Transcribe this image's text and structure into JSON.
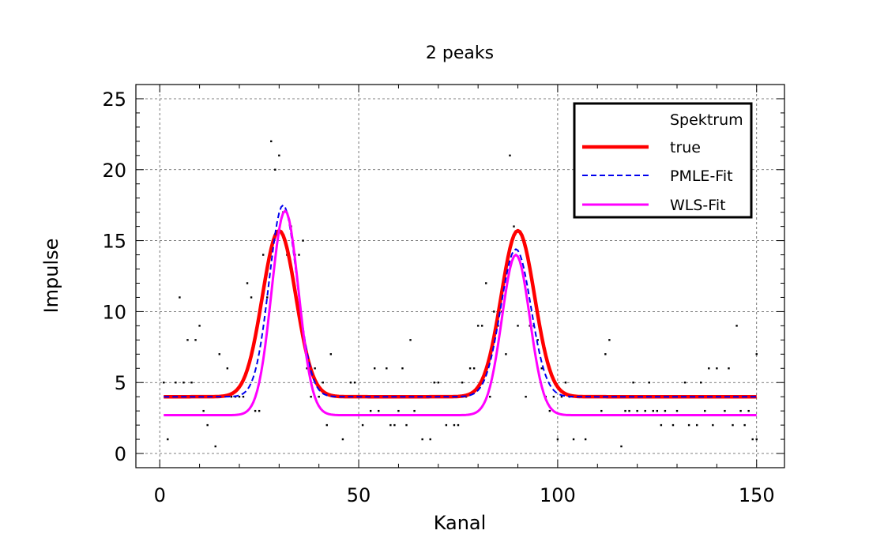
{
  "chart_data": {
    "type": "line",
    "title": "2 peaks",
    "xlabel": "Kanal",
    "ylabel": "Impulse",
    "xlim": [
      -6,
      157
    ],
    "ylim": [
      -1,
      26
    ],
    "xticks": [
      0,
      50,
      100,
      150
    ],
    "yticks": [
      0,
      5,
      10,
      15,
      20,
      25
    ],
    "grid": true,
    "legend_position": "top-right",
    "series": [
      {
        "name": "Spektrum",
        "style": "points",
        "color": "#000000",
        "x": [
          1,
          2,
          3,
          4,
          5,
          6,
          7,
          8,
          9,
          10,
          11,
          12,
          13,
          14,
          15,
          16,
          17,
          18,
          19,
          20,
          21,
          22,
          23,
          24,
          25,
          26,
          27,
          28,
          29,
          30,
          31,
          32,
          33,
          34,
          35,
          36,
          37,
          38,
          39,
          40,
          41,
          42,
          43,
          44,
          45,
          46,
          47,
          48,
          49,
          50,
          51,
          52,
          53,
          54,
          55,
          56,
          57,
          58,
          59,
          60,
          61,
          62,
          63,
          64,
          65,
          66,
          67,
          68,
          69,
          70,
          71,
          72,
          73,
          74,
          75,
          76,
          77,
          78,
          79,
          80,
          81,
          82,
          83,
          84,
          85,
          86,
          87,
          88,
          89,
          90,
          91,
          92,
          93,
          94,
          95,
          96,
          97,
          98,
          99,
          100,
          101,
          102,
          103,
          104,
          105,
          106,
          107,
          108,
          109,
          110,
          111,
          112,
          113,
          114,
          115,
          116,
          117,
          118,
          119,
          120,
          121,
          122,
          123,
          124,
          125,
          126,
          127,
          128,
          129,
          130,
          131,
          132,
          133,
          134,
          135,
          136,
          137,
          138,
          139,
          140,
          141,
          142,
          143,
          144,
          145,
          146,
          147,
          148,
          149,
          150
        ],
        "y": [
          5,
          1,
          4,
          5,
          11,
          5,
          8,
          5,
          8,
          9,
          3,
          2,
          4,
          0.5,
          7,
          4,
          6,
          4,
          4,
          4,
          4,
          12,
          11,
          3,
          3,
          14,
          11,
          22,
          20,
          21,
          17,
          14,
          16,
          14,
          14,
          15,
          6,
          4,
          6,
          4,
          5,
          2,
          7,
          4,
          4,
          1,
          4,
          5,
          5,
          4,
          2,
          4,
          3,
          6,
          3,
          4,
          6,
          2,
          2,
          3,
          6,
          2,
          8,
          3,
          4,
          1,
          4,
          1,
          5,
          5,
          4,
          2,
          4,
          2,
          2,
          5,
          4,
          6,
          6,
          9,
          9,
          12,
          4,
          10,
          9,
          10,
          7,
          21,
          16,
          9,
          13,
          4,
          9,
          9,
          8,
          6,
          4,
          3,
          4,
          1,
          4,
          5,
          4,
          1,
          4,
          4,
          1,
          4,
          4,
          4,
          3,
          7,
          8,
          4,
          4,
          0.5,
          3,
          3,
          5,
          3,
          4,
          3,
          5,
          3,
          3,
          2,
          3,
          4,
          2,
          3,
          4,
          5,
          2,
          4,
          2,
          5,
          3,
          6,
          2,
          6,
          4,
          3,
          6,
          2,
          9,
          3,
          2,
          3,
          1,
          1
        ],
        "extra_points": [
          {
            "x": 150,
            "y": 7
          }
        ]
      },
      {
        "name": "true",
        "style": "solid-thick",
        "color": "#ff0000",
        "baseline": 4,
        "peaks": [
          {
            "center": 30,
            "height": 11.7,
            "sigma": 4.2
          },
          {
            "center": 90,
            "height": 11.7,
            "sigma": 4.2
          }
        ]
      },
      {
        "name": "PMLE-Fit",
        "style": "dashed",
        "color": "#0000ee",
        "baseline": 4,
        "peaks": [
          {
            "center": 31,
            "height": 13.5,
            "sigma": 3.5
          },
          {
            "center": 89.5,
            "height": 10.4,
            "sigma": 3.8
          }
        ]
      },
      {
        "name": "WLS-Fit",
        "style": "solid-dotted",
        "color": "#ff00ff",
        "baseline": 2.7,
        "peaks": [
          {
            "center": 31.5,
            "height": 14.4,
            "sigma": 3.4
          },
          {
            "center": 89.5,
            "height": 11.3,
            "sigma": 3.5
          }
        ]
      }
    ]
  }
}
